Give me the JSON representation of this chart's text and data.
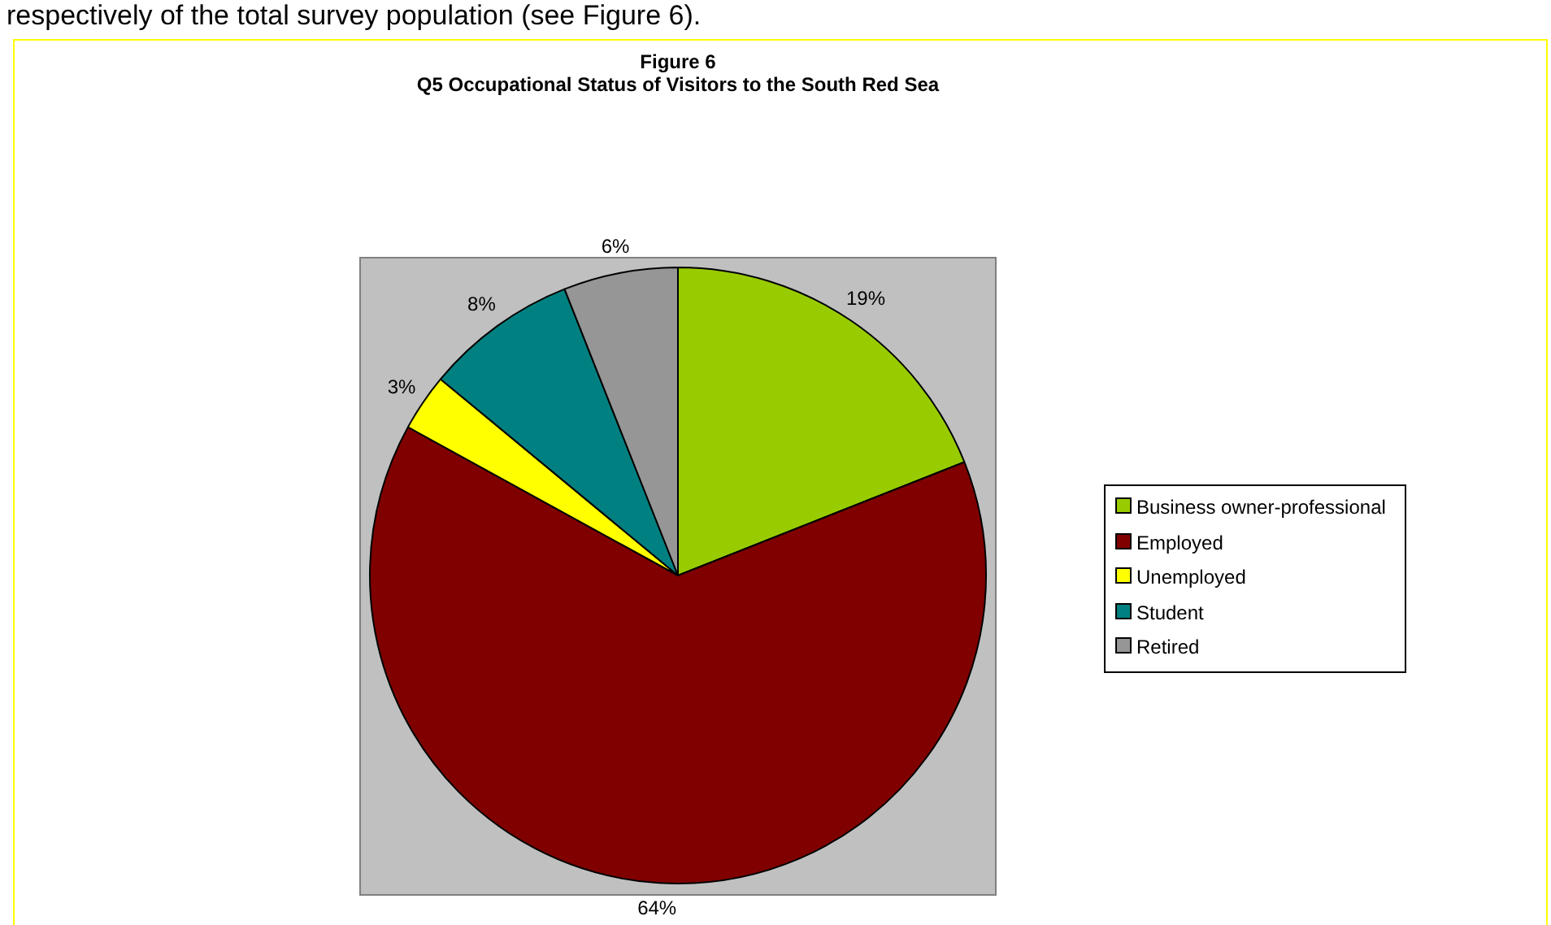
{
  "chart_data": {
    "type": "pie",
    "title": "Figure 6",
    "subtitle": "Q5 Occupational Status of Visitors to the South Red Sea",
    "categories": [
      "Business owner-professional",
      "Employed",
      "Unemployed",
      "Student",
      "Retired"
    ],
    "values": [
      19,
      64,
      3,
      8,
      6
    ],
    "value_labels": [
      "19%",
      "64%",
      "3%",
      "8%",
      "6%"
    ],
    "colors": [
      "#99cc00",
      "#800000",
      "#ffff00",
      "#008080",
      "#969696"
    ],
    "legend": "right",
    "annotations": [
      "respectively of the total survey population (see Figure 6)."
    ]
  }
}
